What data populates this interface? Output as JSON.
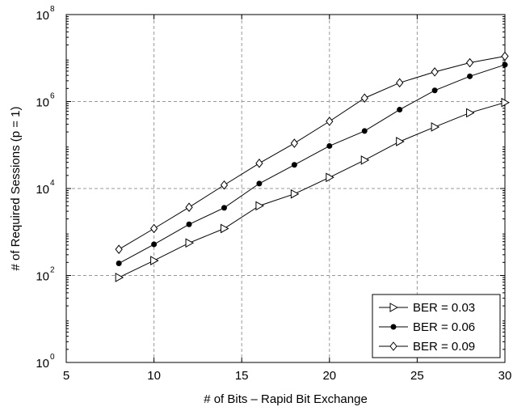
{
  "chart_data": {
    "type": "line",
    "title": "",
    "xlabel": "# of Bits – Rapid Bit Exchange",
    "ylabel": "# of Required Sessions (p = 1)",
    "x_scale": "linear",
    "y_scale": "log",
    "xlim": [
      5,
      30
    ],
    "ylim": [
      1,
      100000000
    ],
    "x_ticks": [
      5,
      10,
      15,
      20,
      25,
      30
    ],
    "y_ticks": [
      {
        "value": 1,
        "base": "10",
        "exp": "0"
      },
      {
        "value": 100,
        "base": "10",
        "exp": "2"
      },
      {
        "value": 10000,
        "base": "10",
        "exp": "4"
      },
      {
        "value": 1000000,
        "base": "10",
        "exp": "6"
      },
      {
        "value": 100000000,
        "base": "10",
        "exp": "8"
      }
    ],
    "grid": true,
    "legend_position": "bottom-right",
    "x": [
      8,
      10,
      12,
      14,
      16,
      18,
      20,
      22,
      24,
      26,
      28,
      30
    ],
    "series": [
      {
        "name": "BER = 0.03",
        "marker": "triangle-right",
        "values": [
          90,
          220,
          560,
          1200,
          4000,
          7500,
          18000,
          45000,
          120000,
          260000,
          550000,
          950000
        ]
      },
      {
        "name": "BER = 0.06",
        "marker": "filled-circle",
        "values": [
          190,
          520,
          1500,
          3600,
          13000,
          35000,
          95000,
          210000,
          650000,
          1800000,
          3800000,
          7000000
        ]
      },
      {
        "name": "BER = 0.09",
        "marker": "diamond",
        "values": [
          400,
          1200,
          3700,
          12000,
          38000,
          110000,
          350000,
          1200000,
          2700000,
          4800000,
          7800000,
          11000000
        ]
      }
    ]
  }
}
